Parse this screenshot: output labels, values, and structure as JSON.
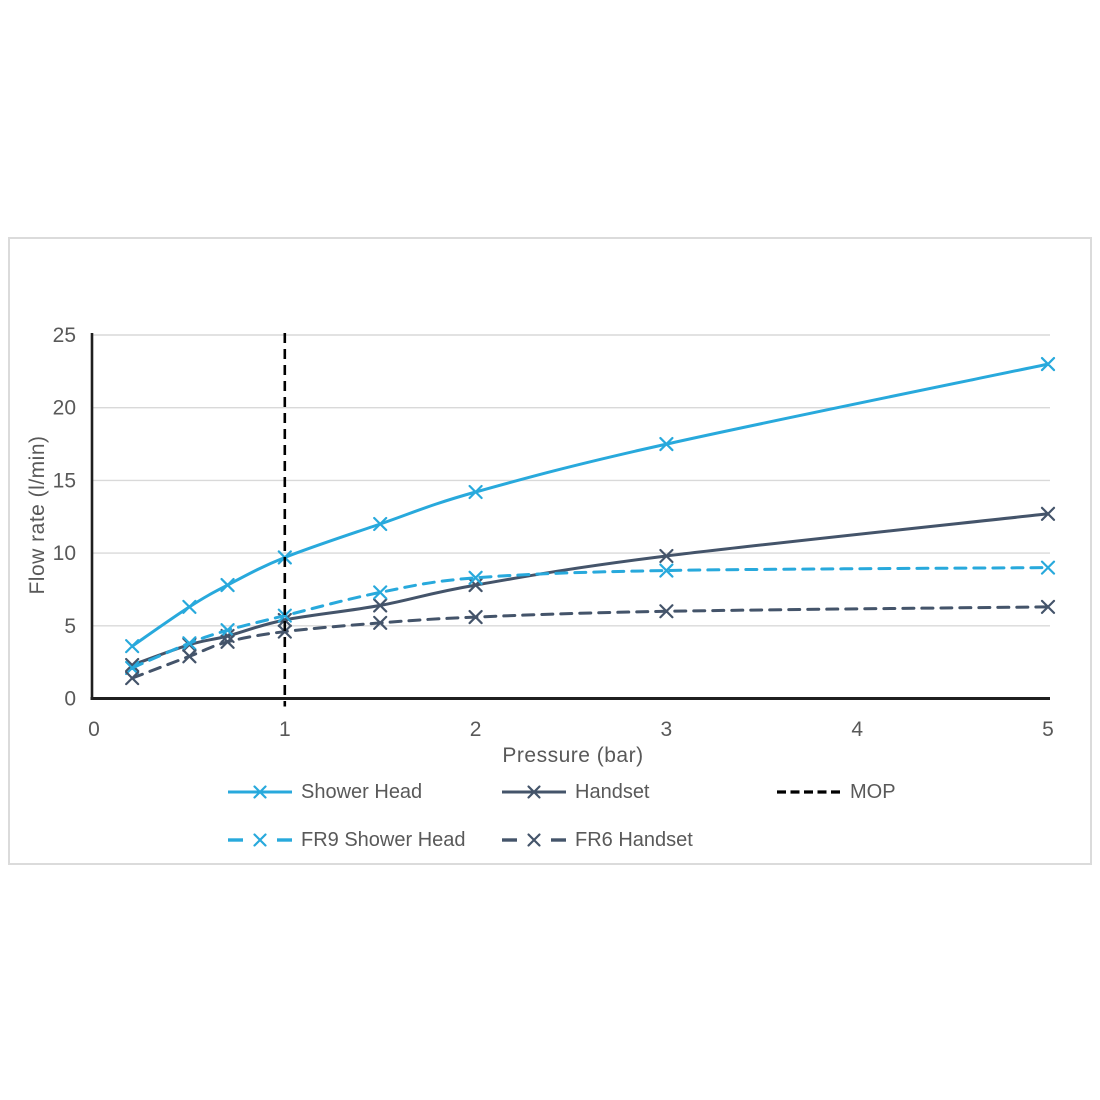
{
  "chart_data": {
    "type": "line",
    "title": "",
    "xlabel": "Pressure (bar)",
    "ylabel": "Flow rate (l/min)",
    "xlim": [
      0,
      5
    ],
    "ylim": [
      0,
      25
    ],
    "xticks": [
      0,
      1,
      2,
      3,
      4,
      5
    ],
    "yticks": [
      0,
      5,
      10,
      15,
      20,
      25
    ],
    "grid": "horizontal",
    "x": [
      0.2,
      0.5,
      0.7,
      1,
      1.5,
      2,
      3,
      5
    ],
    "series": [
      {
        "name": "Shower Head",
        "color": "#28A9DC",
        "style": "solid",
        "marker": "x",
        "values": [
          3.6,
          6.3,
          7.8,
          9.7,
          12.0,
          14.2,
          17.5,
          23.0
        ]
      },
      {
        "name": "Handset",
        "color": "#44546A",
        "style": "solid",
        "marker": "x",
        "values": [
          2.3,
          3.7,
          4.3,
          5.4,
          6.4,
          7.8,
          9.8,
          12.7
        ]
      },
      {
        "name": "FR9 Shower Head",
        "color": "#28A9DC",
        "style": "dashed",
        "marker": "x",
        "values": [
          2.1,
          3.8,
          4.7,
          5.7,
          7.3,
          8.3,
          8.8,
          9.0
        ]
      },
      {
        "name": "FR6 Handset",
        "color": "#44546A",
        "style": "dashed",
        "marker": "x",
        "values": [
          1.4,
          2.9,
          3.9,
          4.6,
          5.2,
          5.6,
          6.0,
          6.3
        ]
      }
    ],
    "reference_line": {
      "name": "MOP",
      "axis": "x",
      "value": 1,
      "color": "#000000",
      "style": "dashed"
    },
    "legend_position": "bottom"
  },
  "legend": {
    "items": [
      {
        "label": "Shower Head",
        "color": "#28A9DC",
        "style": "solid",
        "marker": true,
        "row": 0,
        "col": 0
      },
      {
        "label": "Handset",
        "color": "#44546A",
        "style": "solid",
        "marker": true,
        "row": 0,
        "col": 1
      },
      {
        "label": "MOP",
        "color": "#000000",
        "style": "dash-only",
        "marker": false,
        "row": 0,
        "col": 2
      },
      {
        "label": "FR9 Shower Head",
        "color": "#28A9DC",
        "style": "dashed",
        "marker": true,
        "row": 1,
        "col": 0
      },
      {
        "label": "FR6 Handset",
        "color": "#44546A",
        "style": "dashed",
        "marker": true,
        "row": 1,
        "col": 1
      }
    ]
  },
  "colors": {
    "grid": "#D9D9D9",
    "axis": "#1F1F1F",
    "tick_text": "#595959",
    "figure_border": "#DBDBDB",
    "background": "#FFFFFF"
  }
}
